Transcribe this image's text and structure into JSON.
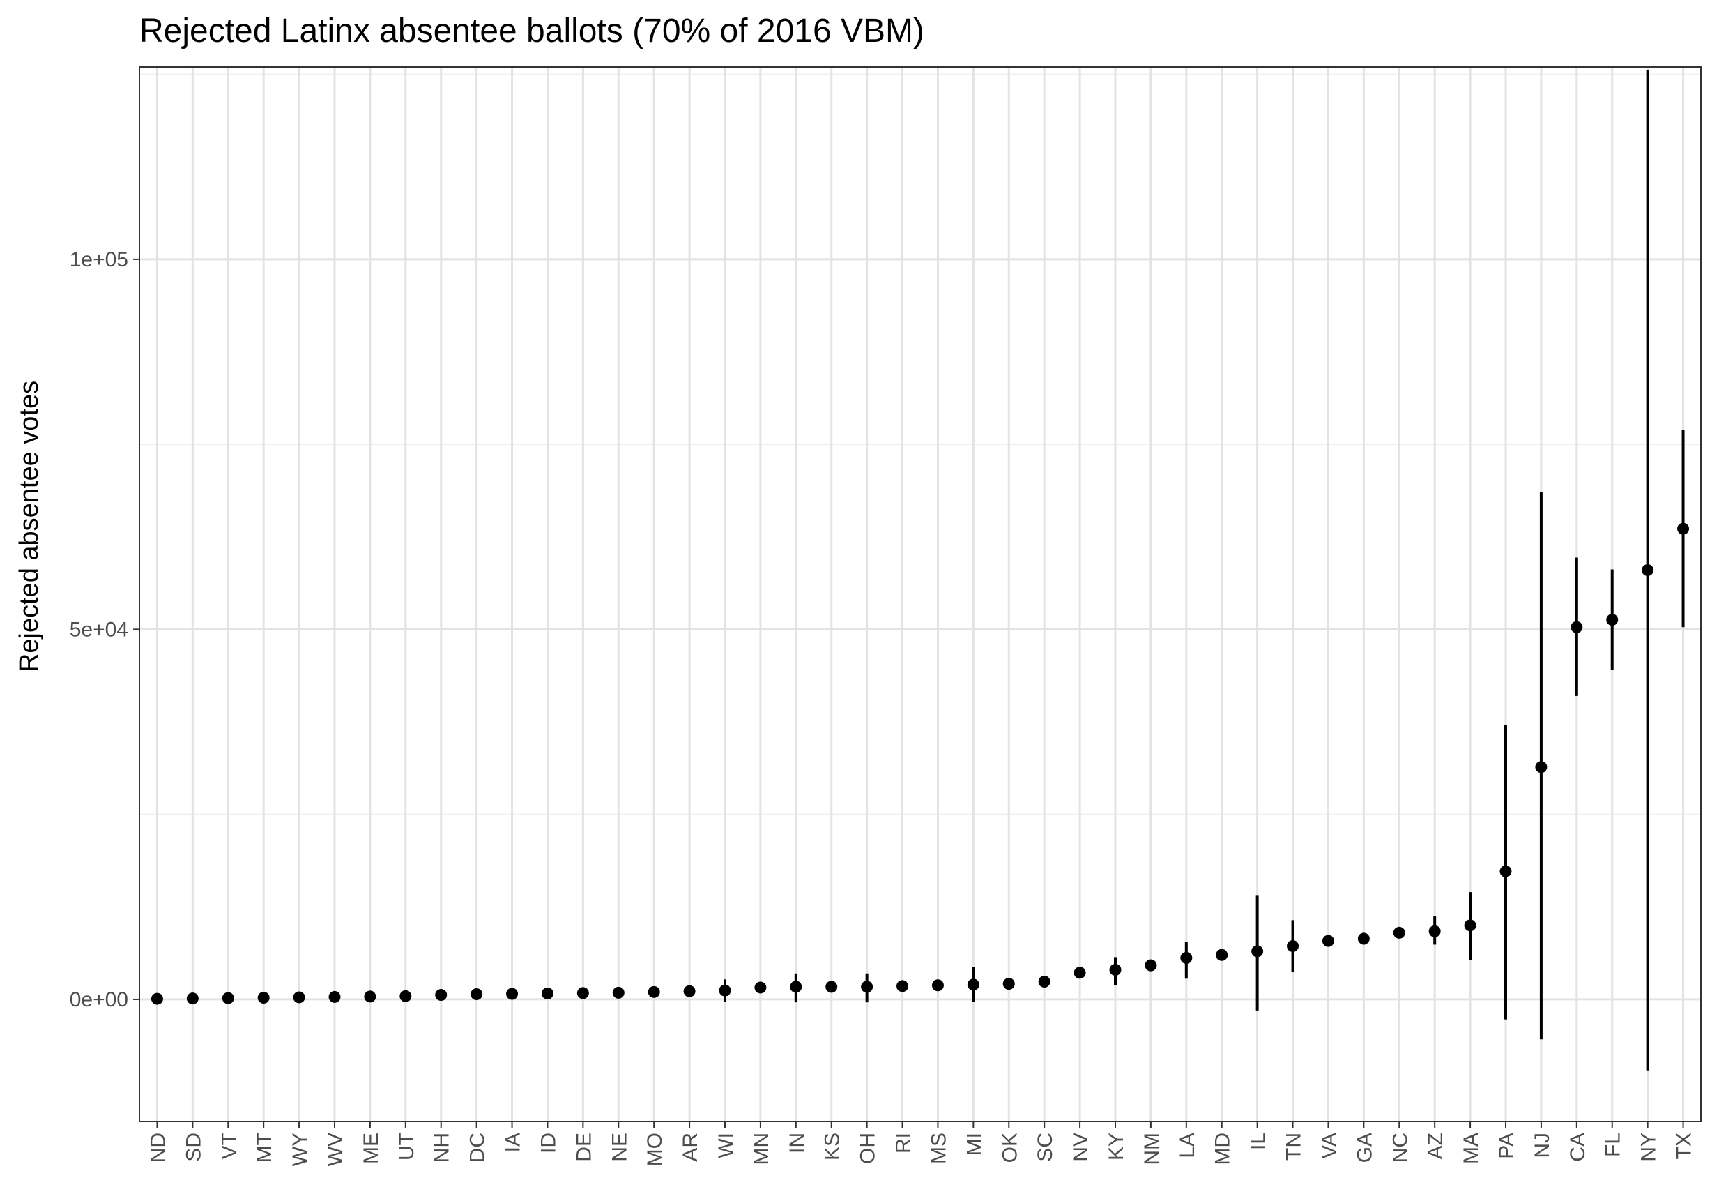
{
  "chart_data": {
    "type": "scatter",
    "title": "Rejected Latinx absentee ballots (70% of 2016 VBM)",
    "xlabel": "",
    "ylabel": "Rejected absentee votes",
    "ylim": [
      -16500,
      126000
    ],
    "y_ticks": [
      {
        "value": 0,
        "label": "0e+00"
      },
      {
        "value": 50000,
        "label": "5e+04"
      },
      {
        "value": 100000,
        "label": "1e+05"
      }
    ],
    "y_minor_ticks": [
      25000,
      75000,
      125000
    ],
    "grid": true,
    "legend": "none",
    "categories": [
      "ND",
      "SD",
      "VT",
      "MT",
      "WY",
      "WV",
      "ME",
      "UT",
      "NH",
      "DC",
      "IA",
      "ID",
      "DE",
      "NE",
      "MO",
      "AR",
      "WI",
      "MN",
      "IN",
      "KS",
      "OH",
      "RI",
      "MS",
      "MI",
      "OK",
      "SC",
      "NV",
      "KY",
      "NM",
      "LA",
      "MD",
      "IL",
      "TN",
      "VA",
      "GA",
      "NC",
      "AZ",
      "MA",
      "PA",
      "NJ",
      "CA",
      "FL",
      "NY",
      "TX"
    ],
    "series": [
      {
        "values": [
          80,
          120,
          170,
          230,
          280,
          330,
          380,
          430,
          600,
          700,
          750,
          800,
          850,
          900,
          1000,
          1100,
          1200,
          1600,
          1700,
          1700,
          1700,
          1800,
          1900,
          2000,
          2100,
          2400,
          3600,
          4000,
          4600,
          5600,
          6000,
          6500,
          7200,
          7900,
          8200,
          9000,
          9200,
          10000,
          17300,
          31400,
          50300,
          51300,
          58000,
          63600
        ],
        "lower": [
          80,
          120,
          170,
          230,
          280,
          330,
          380,
          430,
          600,
          700,
          750,
          800,
          850,
          900,
          1000,
          1100,
          -300,
          1600,
          -400,
          1700,
          -400,
          1800,
          1900,
          -300,
          2100,
          2400,
          3600,
          1900,
          4600,
          2800,
          6000,
          -1500,
          3700,
          7900,
          7400,
          8300,
          7400,
          5300,
          -2700,
          -5400,
          41000,
          44500,
          -9600,
          50300
        ],
        "upper": [
          80,
          120,
          170,
          230,
          280,
          330,
          380,
          430,
          600,
          700,
          750,
          800,
          850,
          900,
          1000,
          1100,
          2700,
          1600,
          3500,
          1700,
          3500,
          1800,
          1900,
          4400,
          2100,
          2400,
          3600,
          5700,
          4600,
          7800,
          6000,
          14100,
          10700,
          7900,
          8900,
          9800,
          11200,
          14500,
          37100,
          68600,
          59700,
          58100,
          125600,
          76900
        ]
      }
    ],
    "colors": {
      "point": "#000000",
      "panel_border": "#333333",
      "grid_major": "#e3e3e3",
      "grid_minor": "#efefef",
      "tick_text": "#4d4d4d"
    }
  }
}
